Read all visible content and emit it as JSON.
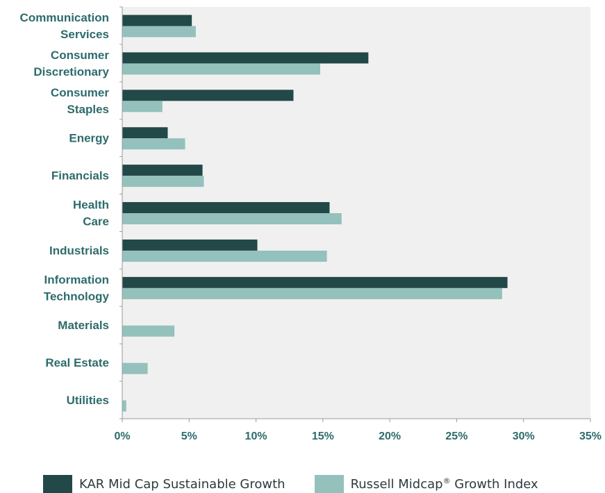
{
  "colors": {
    "plot_background": "#f0f0f0",
    "axis": "#9a9a9a",
    "label_text": "#2e6b6b",
    "series_dark": "#234848",
    "series_light": "#94c1bb"
  },
  "chart_data": {
    "type": "bar",
    "orientation": "horizontal",
    "title": "",
    "xlabel": "",
    "ylabel": "",
    "xlim": [
      0,
      35
    ],
    "x_ticks": [
      0,
      5,
      10,
      15,
      20,
      25,
      30,
      35
    ],
    "x_tick_labels": [
      "0%",
      "5%",
      "10%",
      "15%",
      "20%",
      "25%",
      "30%",
      "35%"
    ],
    "grid": false,
    "legend_position": "bottom",
    "categories": [
      [
        "Communication",
        "Services"
      ],
      [
        "Consumer",
        "Discretionary"
      ],
      [
        "Consumer",
        "Staples"
      ],
      [
        "Energy"
      ],
      [
        "Financials"
      ],
      [
        "Health",
        "Care"
      ],
      [
        "Industrials"
      ],
      [
        "Information",
        "Technology"
      ],
      [
        "Materials"
      ],
      [
        "Real Estate"
      ],
      [
        "Utilities"
      ]
    ],
    "series": [
      {
        "name": "KAR Mid Cap Sustainable Growth",
        "color": "#234848",
        "values": [
          5.2,
          18.4,
          12.8,
          3.4,
          6.0,
          15.5,
          10.1,
          28.8,
          0,
          0,
          0
        ]
      },
      {
        "name": "Russell Midcap",
        "name_superscript": "®",
        "name_suffix": " Growth Index",
        "color": "#94c1bb",
        "values": [
          5.5,
          14.8,
          3.0,
          4.7,
          6.1,
          16.4,
          15.3,
          28.4,
          3.9,
          1.9,
          0.3
        ]
      }
    ]
  }
}
